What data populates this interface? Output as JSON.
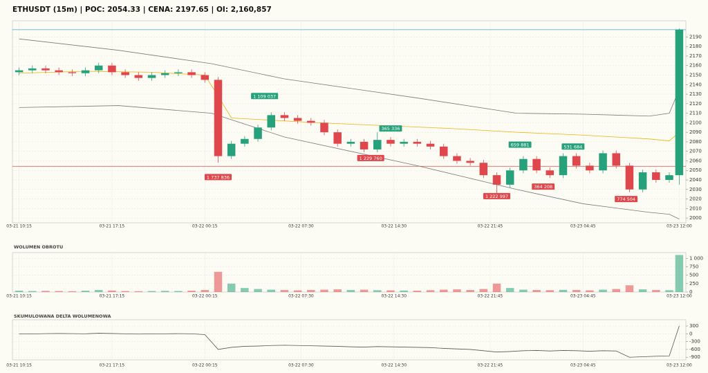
{
  "chart_data": [
    {
      "type": "candlestick",
      "title": "ETHUSDT (15m) | POC: 2054.33 | CENA: 2197.65 | OI: 2,160,857",
      "x": [
        0,
        4,
        8,
        12,
        16,
        20,
        24,
        28,
        32,
        36,
        40,
        44,
        48,
        52,
        56,
        60,
        64,
        68,
        72,
        76,
        80,
        84,
        88,
        92,
        96,
        100,
        104,
        108,
        112,
        116,
        120,
        124,
        128,
        132,
        136,
        140,
        144,
        148,
        152,
        156,
        160,
        164,
        168,
        172,
        176,
        180,
        184,
        188,
        192,
        196,
        199
      ],
      "open": [
        2153,
        2155,
        2157,
        2155,
        2153,
        2152,
        2155,
        2160,
        2153,
        2150,
        2147,
        2150,
        2152,
        2153,
        2150,
        2145,
        2065,
        2078,
        2083,
        2095,
        2108,
        2105,
        2102,
        2100,
        2090,
        2078,
        2080,
        2072,
        2082,
        2078,
        2080,
        2078,
        2075,
        2065,
        2060,
        2058,
        2045,
        2035,
        2050,
        2062,
        2050,
        2045,
        2065,
        2055,
        2050,
        2068,
        2055,
        2030,
        2048,
        2040,
        2045
      ],
      "high": [
        2158,
        2160,
        2160,
        2158,
        2156,
        2158,
        2163,
        2163,
        2156,
        2153,
        2153,
        2155,
        2156,
        2156,
        2153,
        2148,
        2081,
        2086,
        2098,
        2111,
        2111,
        2108,
        2105,
        2103,
        2093,
        2083,
        2083,
        2090,
        2085,
        2083,
        2083,
        2081,
        2078,
        2068,
        2063,
        2061,
        2048,
        2053,
        2065,
        2065,
        2053,
        2068,
        2068,
        2058,
        2071,
        2071,
        2058,
        2051,
        2051,
        2048,
        2199
      ],
      "low": [
        2150,
        2152,
        2152,
        2150,
        2149,
        2149,
        2152,
        2150,
        2147,
        2144,
        2144,
        2147,
        2149,
        2147,
        2142,
        2058,
        2062,
        2075,
        2080,
        2092,
        2102,
        2099,
        2097,
        2087,
        2075,
        2075,
        2069,
        2069,
        2075,
        2075,
        2075,
        2072,
        2062,
        2057,
        2055,
        2042,
        2025,
        2032,
        2047,
        2047,
        2042,
        2042,
        2052,
        2047,
        2047,
        2052,
        2027,
        2027,
        2037,
        2037,
        2035
      ],
      "close": [
        2155,
        2157,
        2155,
        2153,
        2152,
        2155,
        2160,
        2153,
        2150,
        2147,
        2150,
        2152,
        2153,
        2150,
        2145,
        2065,
        2078,
        2083,
        2095,
        2108,
        2105,
        2102,
        2100,
        2090,
        2078,
        2080,
        2072,
        2082,
        2078,
        2080,
        2078,
        2075,
        2065,
        2060,
        2058,
        2045,
        2035,
        2050,
        2062,
        2050,
        2045,
        2065,
        2055,
        2050,
        2068,
        2055,
        2030,
        2048,
        2040,
        2045,
        2197.65
      ],
      "up_color": "#26a17b",
      "down_color": "#e0474c",
      "overlays": [
        {
          "color": "#e8b30c",
          "x": [
            0,
            20,
            40,
            56,
            60,
            64,
            90,
            110,
            130,
            150,
            170,
            190,
            196,
            199
          ],
          "values": [
            2152,
            2154,
            2153,
            2150,
            2128,
            2105,
            2100,
            2097,
            2094,
            2090,
            2087,
            2083,
            2081,
            2090
          ]
        },
        {
          "color": "#777777",
          "x": [
            0,
            30,
            58,
            80,
            120,
            150,
            170,
            190,
            196,
            199
          ],
          "values": [
            2188,
            2176,
            2162,
            2146,
            2126,
            2110,
            2109,
            2107,
            2110,
            2135
          ]
        },
        {
          "color": "#777777",
          "x": [
            0,
            30,
            58,
            80,
            120,
            150,
            170,
            190,
            196,
            199
          ],
          "values": [
            2116,
            2118,
            2110,
            2085,
            2055,
            2030,
            2015,
            2006,
            2004,
            1999
          ]
        }
      ],
      "poc": 2054.33,
      "poc_color": "#e0474c",
      "last_price": 2197.65,
      "last_price_color": "#3aa8c8",
      "annotations": [
        {
          "text": "1 737 836",
          "x": 60,
          "y": 2043,
          "color": "#e0474c"
        },
        {
          "text": "1 109 037",
          "x": 74,
          "y": 2128,
          "color": "#26a17b"
        },
        {
          "text": "365 336",
          "x": 112,
          "y": 2094,
          "color": "#26a17b"
        },
        {
          "text": "1 229 760",
          "x": 106,
          "y": 2063,
          "color": "#e0474c"
        },
        {
          "text": "659 881",
          "x": 151,
          "y": 2077,
          "color": "#26a17b"
        },
        {
          "text": "531 684",
          "x": 167,
          "y": 2075,
          "color": "#26a17b"
        },
        {
          "text": "364 208",
          "x": 158,
          "y": 2033,
          "color": "#e0474c"
        },
        {
          "text": "1 222 997",
          "x": 144,
          "y": 2023,
          "color": "#e0474c"
        },
        {
          "text": "774 504",
          "x": 183,
          "y": 2020,
          "color": "#e0474c"
        }
      ],
      "xlim": [
        -2,
        201
      ],
      "xticks": [
        {
          "value": 0,
          "label": "03-21 10:15"
        },
        {
          "value": 28,
          "label": "03-21 17:15"
        },
        {
          "value": 56,
          "label": "03-22 00:15"
        },
        {
          "value": 85,
          "label": "03-22 07:30"
        },
        {
          "value": 113,
          "label": "03-22 14:30"
        },
        {
          "value": 142,
          "label": "03-22 21:45"
        },
        {
          "value": 170,
          "label": "03-23 04:45"
        },
        {
          "value": 199,
          "label": "03-23 12:00"
        }
      ],
      "ylim": [
        1995,
        2207
      ],
      "yticks": [
        2000,
        2010,
        2020,
        2030,
        2040,
        2050,
        2060,
        2070,
        2080,
        2090,
        2100,
        2110,
        2120,
        2130,
        2140,
        2150,
        2160,
        2170,
        2180,
        2190
      ],
      "grid": true
    },
    {
      "type": "bar",
      "title": "WOLUMEN OBROTU",
      "values": [
        40,
        30,
        35,
        30,
        25,
        40,
        60,
        45,
        30,
        25,
        30,
        35,
        30,
        40,
        60,
        600,
        250,
        120,
        90,
        70,
        60,
        50,
        60,
        70,
        80,
        60,
        70,
        55,
        50,
        45,
        40,
        55,
        70,
        80,
        60,
        90,
        250,
        120,
        70,
        60,
        55,
        65,
        60,
        50,
        70,
        90,
        200,
        80,
        60,
        55,
        1100
      ],
      "ylim": [
        0,
        1170
      ],
      "yticks": [
        0,
        250,
        500,
        750,
        {
          "value": 1000,
          "label": "1 000"
        }
      ],
      "grid": true
    },
    {
      "type": "line",
      "title": "SKUMULOWANA DELTA WOLUMENOWA",
      "color": "#555555",
      "values": [
        0,
        -5,
        5,
        10,
        5,
        0,
        20,
        10,
        0,
        -10,
        -5,
        0,
        5,
        0,
        -30,
        -600,
        -520,
        -480,
        -470,
        -450,
        -440,
        -450,
        -460,
        -470,
        -480,
        -500,
        -510,
        -490,
        -500,
        -510,
        -520,
        -530,
        -560,
        -580,
        -600,
        -650,
        -700,
        -680,
        -650,
        -640,
        -660,
        -640,
        -650,
        -670,
        -650,
        -660,
        -900,
        -880,
        -860,
        -850,
        300
      ],
      "ylim": [
        -1000,
        540
      ],
      "yticks": [
        -900,
        -600,
        -300,
        0,
        300
      ],
      "grid": true
    }
  ]
}
